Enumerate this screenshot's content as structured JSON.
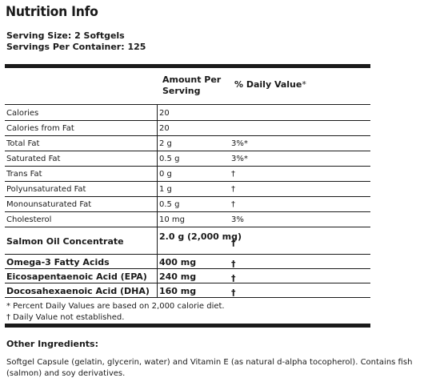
{
  "title": "Nutrition Info",
  "serving_size": "Serving Size: 2 Softgels",
  "servings_per_container": "Servings Per Container: 125",
  "header": {
    "amount": "Amount Per Serving",
    "daily_value": "% Daily Value",
    "daily_value_mark": "*"
  },
  "rows": [
    {
      "name": "Calories",
      "amount": "20",
      "dv": ""
    },
    {
      "name": "Calories from Fat",
      "amount": "20",
      "dv": ""
    },
    {
      "name": "Total Fat",
      "amount": "2 g",
      "dv": "3%*"
    },
    {
      "name": "Saturated Fat",
      "amount": "0.5 g",
      "dv": "3%*"
    },
    {
      "name": "Trans Fat",
      "amount": "0 g",
      "dv": "†"
    },
    {
      "name": "Polyunsaturated Fat",
      "amount": "1 g",
      "dv": "†"
    },
    {
      "name": "Monounsaturated Fat",
      "amount": "0.5 g",
      "dv": "†"
    },
    {
      "name": "Cholesterol",
      "amount": "10 mg",
      "dv": "3%"
    },
    {
      "name": "Salmon Oil Concentrate",
      "amount": "2.0 g (2,000 mg)",
      "dv": "†"
    },
    {
      "name": "Omega-3 Fatty Acids",
      "amount": "400 mg",
      "dv": "†"
    },
    {
      "name": "Eicosapentaenoic Acid (EPA)",
      "amount": "240 mg",
      "dv": "†"
    },
    {
      "name": "Docosahexaenoic Acid (DHA)",
      "amount": "160 mg",
      "dv": "†"
    }
  ],
  "footnotes": [
    "* Percent Daily Values are based on 2,000 calorie diet.",
    "† Daily Value not established."
  ],
  "other_ingredients_title": "Other Ingredients:",
  "other_ingredients_text": "Softgel Capsule (gelatin, glycerin, water) and Vitamin E (as natural d-alpha tocopherol).  Contains fish (salmon) and soy derivatives."
}
